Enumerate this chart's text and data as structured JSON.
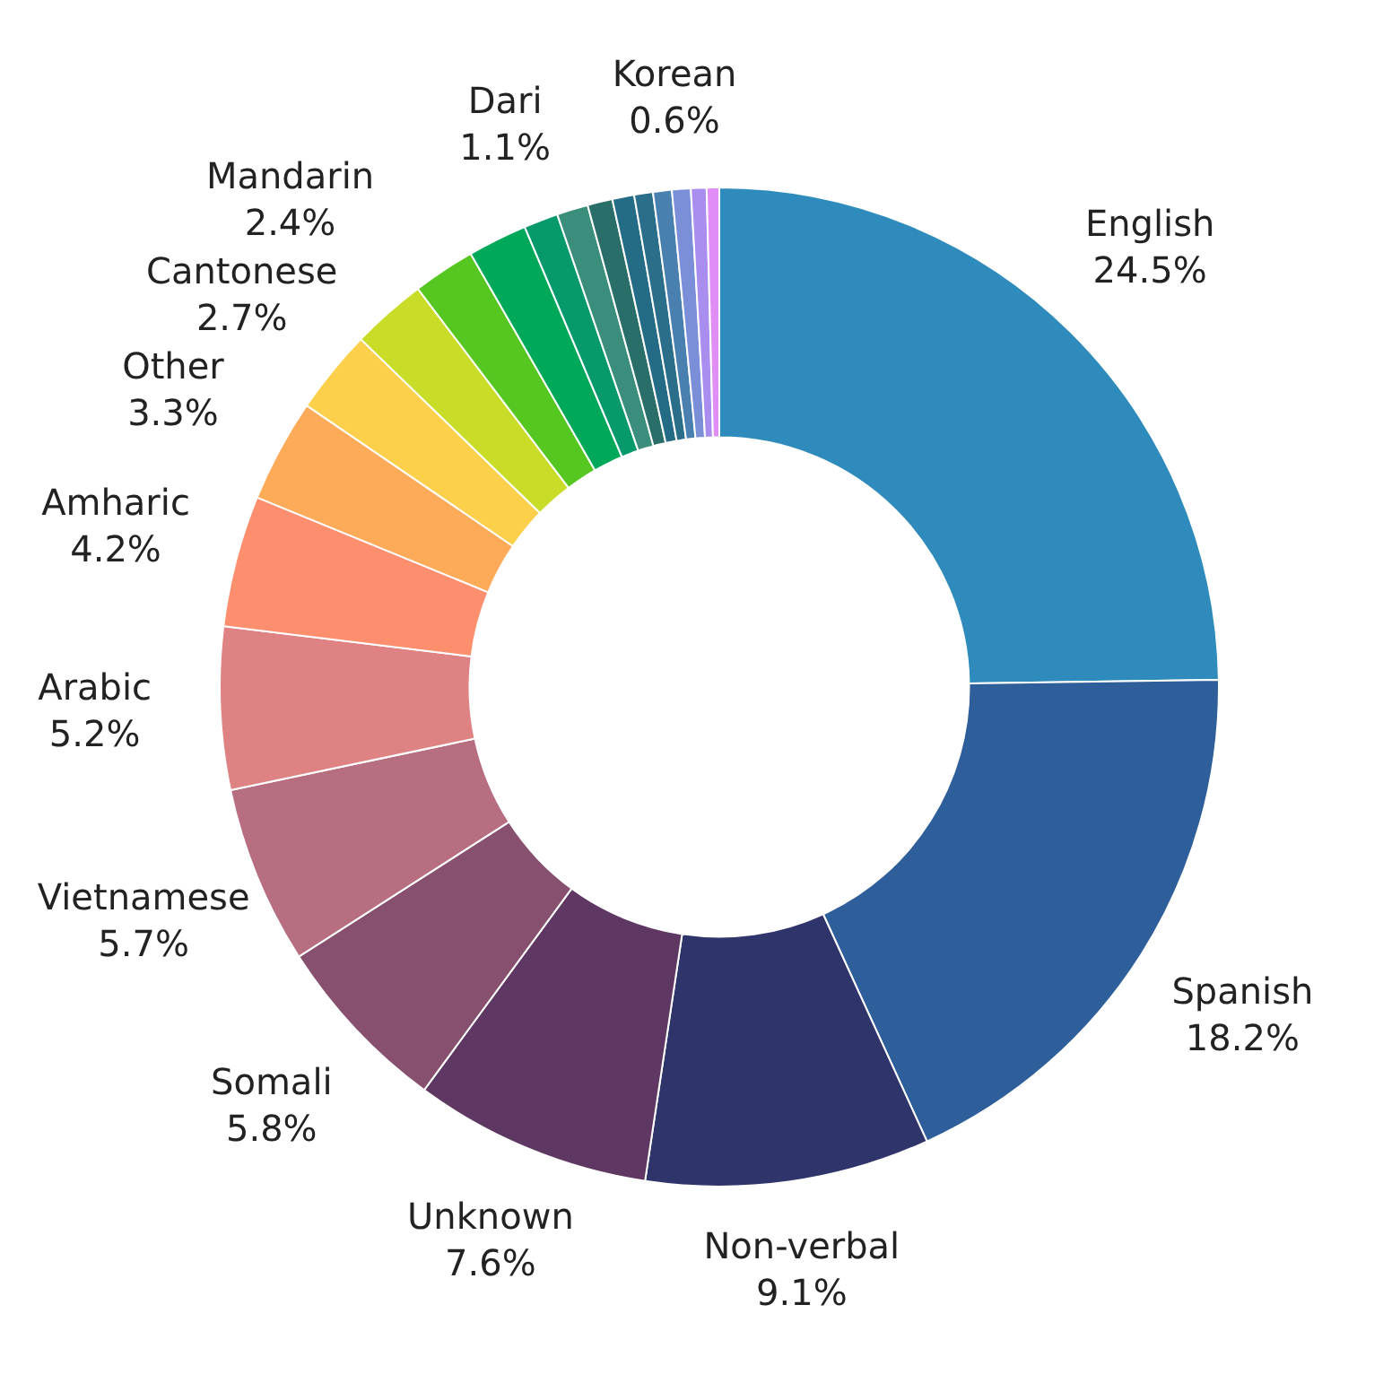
{
  "chart_data": {
    "type": "donut",
    "categories": [
      "English",
      "Spanish",
      "Non-verbal",
      "Unknown",
      "Somali",
      "Vietnamese",
      "Arabic",
      "Amharic",
      "Other",
      "Cantonese",
      "Mandarin",
      null,
      null,
      "Dari",
      null,
      null,
      null,
      null,
      null,
      "Korean",
      null,
      null
    ],
    "values": [
      24.5,
      18.2,
      9.1,
      7.6,
      5.8,
      5.7,
      5.2,
      4.2,
      3.3,
      2.7,
      2.4,
      2.0,
      1.9,
      1.1,
      1.0,
      0.8,
      0.7,
      0.6,
      0.6,
      0.6,
      0.5,
      0.4
    ],
    "value_labels": [
      "24.5%",
      "18.2%",
      "9.1%",
      "7.6%",
      "5.8%",
      "5.7%",
      "5.2%",
      "4.2%",
      "3.3%",
      "2.7%",
      "2.4%",
      null,
      null,
      "1.1%",
      null,
      null,
      null,
      null,
      null,
      "0.6%",
      null,
      null
    ],
    "colors": [
      "#2e8bbb",
      "#2e5f9a",
      "#2f356b",
      "#5e3763",
      "#87506e",
      "#b66e80",
      "#de8283",
      "#fd8f6e",
      "#fdab59",
      "#fdd04c",
      "#c8dc28",
      "#56c620",
      "#00a85a",
      "#05996c",
      "#3a8e7b",
      "#2a6e6a",
      "#246c86",
      "#2a6e8a",
      "#4a80b0",
      "#7a8fd8",
      "#a98ef0",
      "#e08ef5"
    ],
    "legend": false
  }
}
